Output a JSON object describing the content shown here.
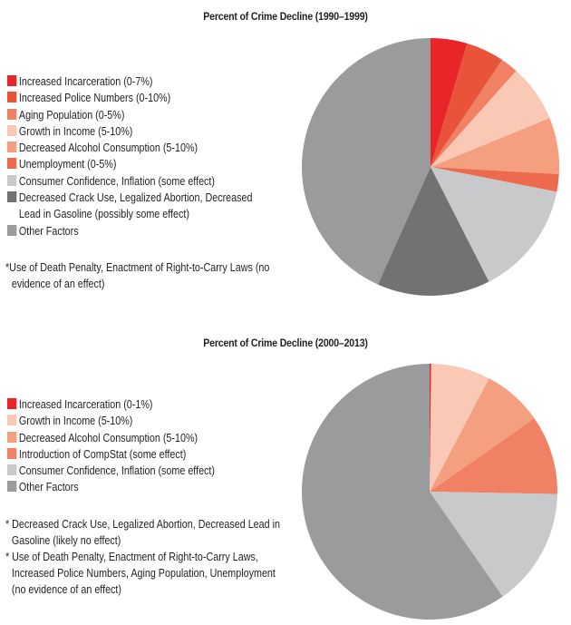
{
  "chart_data": [
    {
      "type": "pie",
      "title": "Percent of Crime Decline (1990–1999)",
      "start": "top-clockwise",
      "slices": [
        {
          "label": "Increased Incarceration (0-7%)",
          "value": 4.6,
          "color": "#e8262a"
        },
        {
          "label": "Increased Police Numbers (0-10%)",
          "value": 4.8,
          "color": "#e9533a"
        },
        {
          "label": "Aging Population (0-5%)",
          "value": 2.2,
          "color": "#f08164"
        },
        {
          "label": "Growth in Income (5-10%)",
          "value": 7.2,
          "color": "#f9c9b6"
        },
        {
          "label": "Decreased Alcohol Consumption (5-10%)",
          "value": 7.1,
          "color": "#f39f80"
        },
        {
          "label": "Unemployment (0-5%)",
          "value": 2.2,
          "color": "#ee6a4e"
        },
        {
          "label": "Consumer Confidence, Inflation (some effect)",
          "value": 14.4,
          "color": "#c8c9cb"
        },
        {
          "label": "Decreased Crack Use, Legalized Abortion, Decreased Lead in Gasoline (possibly some effect)",
          "value": 14.2,
          "color": "#717274",
          "two_line": true
        },
        {
          "label": "Other Factors",
          "value": 43.3,
          "color": "#9a9b9d"
        }
      ],
      "notes": [
        "*Use of Death Penalty, Enactment of Right-to-Carry Laws (no evidence of an effect)"
      ]
    },
    {
      "type": "pie",
      "title": "Percent of Crime Decline (2000–2013)",
      "start": "top-clockwise",
      "slices": [
        {
          "label": "Increased Incarceration (0-1%)",
          "value": 0.2,
          "color": "#e8262a"
        },
        {
          "label": "Growth in Income (5-10%)",
          "value": 7.5,
          "color": "#f9c9b6"
        },
        {
          "label": "Decreased Alcohol Consumption (5-10%)",
          "value": 7.6,
          "color": "#f39f80"
        },
        {
          "label": "Introduction of CompStat (some effect)",
          "value": 10.0,
          "color": "#f08164"
        },
        {
          "label": "Consumer Confidence, Inflation (some effect)",
          "value": 15.0,
          "color": "#c8c9cb"
        },
        {
          "label": "Other Factors",
          "value": 59.7,
          "color": "#9a9b9d"
        }
      ],
      "notes": [
        "* Decreased Crack Use, Legalized Abortion, Decreased Lead in Gasoline (likely no effect)",
        "* Use of Death Penalty, Enactment of Right-to-Carry Laws, Increased Police Numbers, Aging Population, Unemployment (no evidence of an effect)"
      ]
    }
  ]
}
